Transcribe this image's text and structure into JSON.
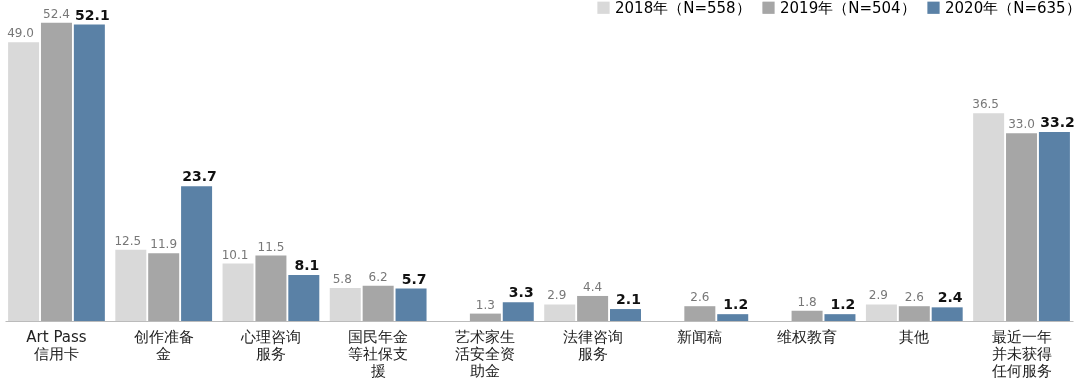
{
  "chart_data": {
    "type": "bar",
    "categories": [
      "Art Pass\n信用卡",
      "创作准备金",
      "心理咨询服务",
      "国民年金等社保支援",
      "艺术家生活安全资助金",
      "法律咨询服务",
      "新闻稿",
      "维权教育",
      "其他",
      "最近一年并未获得任何服务"
    ],
    "series": [
      {
        "name": "2018年（N=558）",
        "color": "#d9d9d9",
        "values": [
          49.0,
          12.5,
          10.1,
          5.8,
          null,
          2.9,
          null,
          null,
          2.9,
          36.5
        ],
        "value_labels": [
          "49.0",
          "12.5",
          "10.1",
          "5.8",
          null,
          "2.9",
          null,
          null,
          "2.9",
          "36.5"
        ]
      },
      {
        "name": "2019年（N=504）",
        "color": "#a6a6a6",
        "values": [
          52.4,
          11.9,
          11.5,
          6.2,
          1.3,
          4.4,
          2.6,
          1.8,
          2.6,
          33.0
        ],
        "value_labels": [
          "52.4",
          "11.9",
          "11.5",
          "6.2",
          "1.3",
          "4.4",
          "2.6",
          "1.8",
          "2.6",
          "33.0"
        ]
      },
      {
        "name": "2020年（N=635）",
        "color": "#5a81a6",
        "values": [
          52.1,
          23.7,
          8.1,
          5.7,
          3.3,
          2.1,
          1.2,
          1.2,
          2.4,
          33.2
        ],
        "value_labels": [
          "52.1",
          "23.7",
          "8.1",
          "5.7",
          "3.3",
          "2.1",
          "1.2",
          "1.2",
          "2.4",
          "33.2"
        ]
      }
    ],
    "data_labels": true,
    "legend": "top right",
    "grid": false
  }
}
